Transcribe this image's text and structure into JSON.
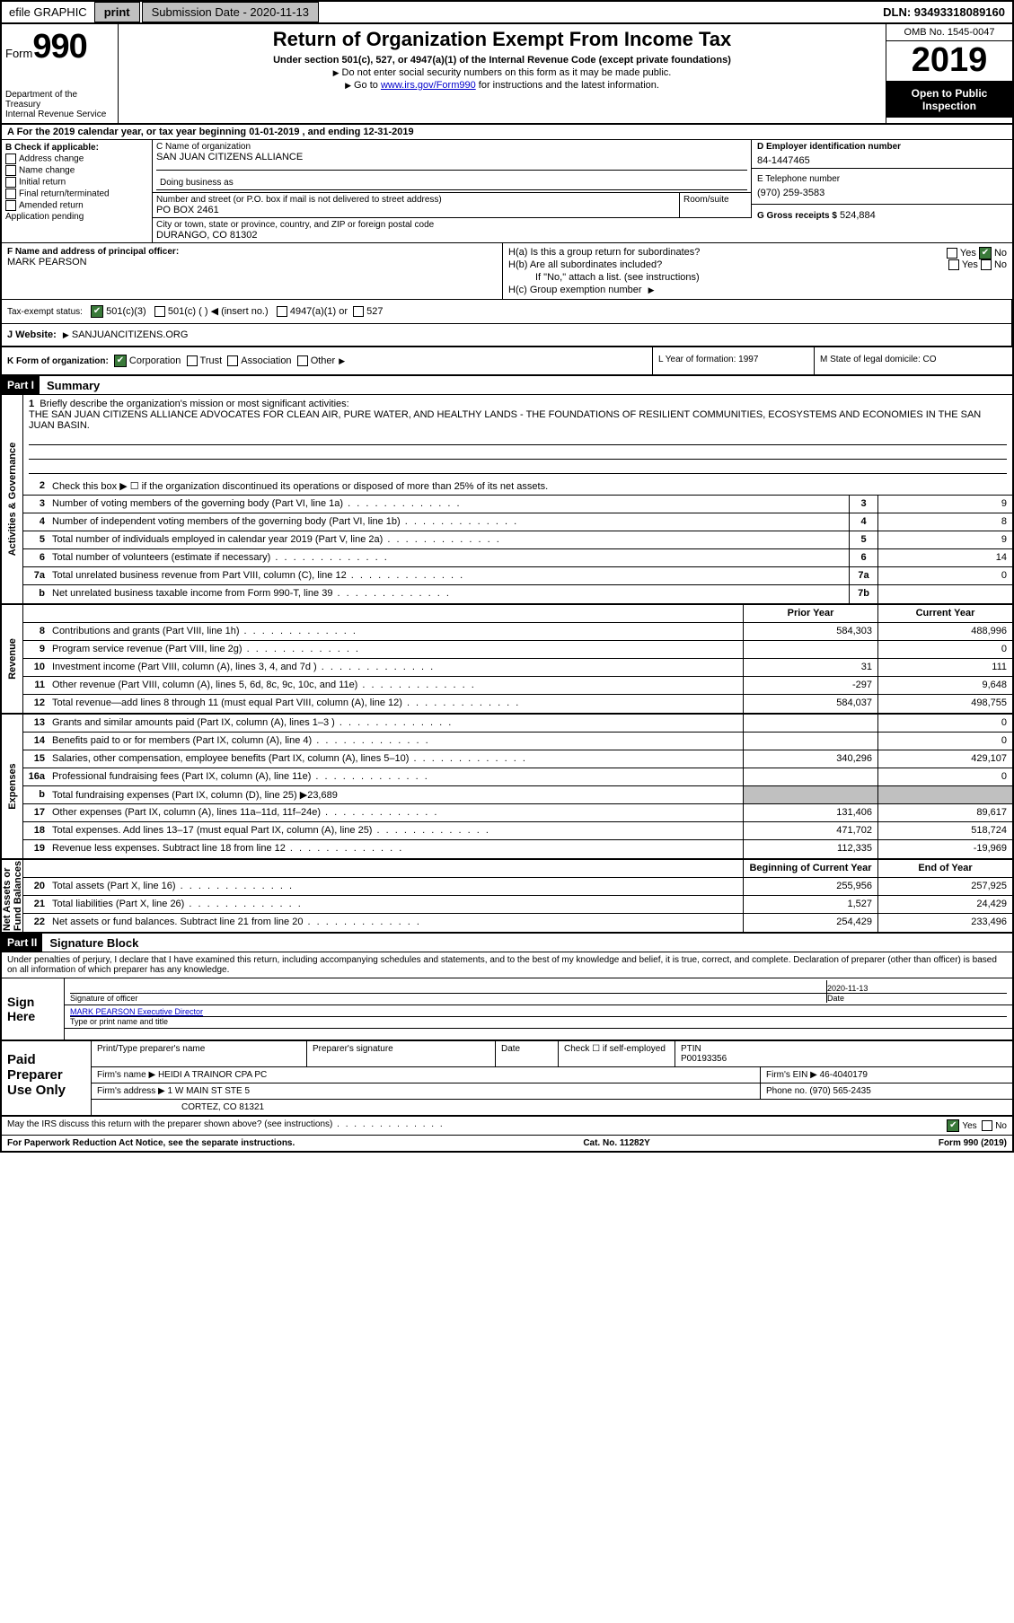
{
  "topbar": {
    "efile": "efile GRAPHIC",
    "print": "print",
    "subdate_label": "Submission Date - 2020-11-13",
    "dln": "DLN: 93493318089160"
  },
  "header": {
    "form_word": "Form",
    "form_num": "990",
    "dept": "Department of the Treasury\nInternal Revenue Service",
    "title": "Return of Organization Exempt From Income Tax",
    "subtitle": "Under section 501(c), 527, or 4947(a)(1) of the Internal Revenue Code (except private foundations)",
    "note1": "Do not enter social security numbers on this form as it may be made public.",
    "note2_pre": "Go to ",
    "note2_link": "www.irs.gov/Form990",
    "note2_post": " for instructions and the latest information.",
    "omb": "OMB No. 1545-0047",
    "year": "2019",
    "open": "Open to Public Inspection"
  },
  "rowA": "A For the 2019 calendar year, or tax year beginning 01-01-2019    , and ending 12-31-2019",
  "colB": {
    "hdr": "B Check if applicable:",
    "items": [
      "Address change",
      "Name change",
      "Initial return",
      "Final return/terminated",
      "Amended return",
      "Application pending"
    ]
  },
  "nameC": {
    "label": "C Name of organization",
    "value": "SAN JUAN CITIZENS ALLIANCE",
    "dba": "Doing business as",
    "addr_label": "Number and street (or P.O. box if mail is not delivered to street address)",
    "addr": "PO BOX 2461",
    "room": "Room/suite",
    "city_label": "City or town, state or province, country, and ZIP or foreign postal code",
    "city": "DURANGO, CO  81302"
  },
  "boxD": {
    "label": "D Employer identification number",
    "value": "84-1447465"
  },
  "boxE": {
    "label": "E Telephone number",
    "value": "(970) 259-3583"
  },
  "boxG": {
    "label": "G Gross receipts $",
    "value": "524,884"
  },
  "boxF": {
    "label": "F  Name and address of principal officer:",
    "name": "MARK PEARSON"
  },
  "boxH": {
    "ha": "H(a)  Is this a group return for subordinates?",
    "hb": "H(b)  Are all subordinates included?",
    "hb_note": "If \"No,\" attach a list. (see instructions)",
    "hc": "H(c)  Group exemption number",
    "yes": "Yes",
    "no": "No"
  },
  "taxI": {
    "label": "Tax-exempt status:",
    "opts": [
      "501(c)(3)",
      "501(c) (  )  ◀ (insert no.)",
      "4947(a)(1) or",
      "527"
    ]
  },
  "webJ": {
    "label": "J   Website:",
    "value": "SANJUANCITIZENS.ORG"
  },
  "rowK": {
    "label": "K Form of organization:",
    "opts": [
      "Corporation",
      "Trust",
      "Association",
      "Other"
    ],
    "l": "L Year of formation: 1997",
    "m": "M State of legal domicile: CO"
  },
  "part1": {
    "hdr": "Part I",
    "title": "Summary",
    "q1": "Briefly describe the organization's mission or most significant activities:",
    "mission": "THE SAN JUAN CITIZENS ALLIANCE ADVOCATES FOR CLEAN AIR, PURE WATER, AND HEALTHY LANDS - THE FOUNDATIONS OF RESILIENT COMMUNITIES, ECOSYSTEMS AND ECONOMIES IN THE SAN JUAN BASIN.",
    "q2": "Check this box ▶ ☐  if the organization discontinued its operations or disposed of more than 25% of its net assets.",
    "lines": [
      {
        "n": "3",
        "d": "Number of voting members of the governing body (Part VI, line 1a)",
        "box": "3",
        "v": "9"
      },
      {
        "n": "4",
        "d": "Number of independent voting members of the governing body (Part VI, line 1b)",
        "box": "4",
        "v": "8"
      },
      {
        "n": "5",
        "d": "Total number of individuals employed in calendar year 2019 (Part V, line 2a)",
        "box": "5",
        "v": "9"
      },
      {
        "n": "6",
        "d": "Total number of volunteers (estimate if necessary)",
        "box": "6",
        "v": "14"
      },
      {
        "n": "7a",
        "d": "Total unrelated business revenue from Part VIII, column (C), line 12",
        "box": "7a",
        "v": "0"
      },
      {
        "n": "b",
        "d": "Net unrelated business taxable income from Form 990-T, line 39",
        "box": "7b",
        "v": ""
      }
    ]
  },
  "revenue": {
    "label": "Revenue",
    "hdr_prior": "Prior Year",
    "hdr_curr": "Current Year",
    "lines": [
      {
        "n": "8",
        "d": "Contributions and grants (Part VIII, line 1h)",
        "p": "584,303",
        "c": "488,996"
      },
      {
        "n": "9",
        "d": "Program service revenue (Part VIII, line 2g)",
        "p": "",
        "c": "0"
      },
      {
        "n": "10",
        "d": "Investment income (Part VIII, column (A), lines 3, 4, and 7d )",
        "p": "31",
        "c": "111"
      },
      {
        "n": "11",
        "d": "Other revenue (Part VIII, column (A), lines 5, 6d, 8c, 9c, 10c, and 11e)",
        "p": "-297",
        "c": "9,648"
      },
      {
        "n": "12",
        "d": "Total revenue—add lines 8 through 11 (must equal Part VIII, column (A), line 12)",
        "p": "584,037",
        "c": "498,755"
      }
    ]
  },
  "expenses": {
    "label": "Expenses",
    "lines": [
      {
        "n": "13",
        "d": "Grants and similar amounts paid (Part IX, column (A), lines 1–3 )",
        "p": "",
        "c": "0"
      },
      {
        "n": "14",
        "d": "Benefits paid to or for members (Part IX, column (A), line 4)",
        "p": "",
        "c": "0"
      },
      {
        "n": "15",
        "d": "Salaries, other compensation, employee benefits (Part IX, column (A), lines 5–10)",
        "p": "340,296",
        "c": "429,107"
      },
      {
        "n": "16a",
        "d": "Professional fundraising fees (Part IX, column (A), line 11e)",
        "p": "",
        "c": "0"
      },
      {
        "n": "b",
        "d": "Total fundraising expenses (Part IX, column (D), line 25) ▶23,689",
        "grey": true
      },
      {
        "n": "17",
        "d": "Other expenses (Part IX, column (A), lines 11a–11d, 11f–24e)",
        "p": "131,406",
        "c": "89,617"
      },
      {
        "n": "18",
        "d": "Total expenses. Add lines 13–17 (must equal Part IX, column (A), line 25)",
        "p": "471,702",
        "c": "518,724"
      },
      {
        "n": "19",
        "d": "Revenue less expenses. Subtract line 18 from line 12",
        "p": "112,335",
        "c": "-19,969"
      }
    ]
  },
  "netassets": {
    "label": "Net Assets or Fund Balances",
    "hdr_beg": "Beginning of Current Year",
    "hdr_end": "End of Year",
    "lines": [
      {
        "n": "20",
        "d": "Total assets (Part X, line 16)",
        "p": "255,956",
        "c": "257,925"
      },
      {
        "n": "21",
        "d": "Total liabilities (Part X, line 26)",
        "p": "1,527",
        "c": "24,429"
      },
      {
        "n": "22",
        "d": "Net assets or fund balances. Subtract line 21 from line 20",
        "p": "254,429",
        "c": "233,496"
      }
    ]
  },
  "part2": {
    "hdr": "Part II",
    "title": "Signature Block",
    "decl": "Under penalties of perjury, I declare that I have examined this return, including accompanying schedules and statements, and to the best of my knowledge and belief, it is true, correct, and complete. Declaration of preparer (other than officer) is based on all information of which preparer has any knowledge."
  },
  "sign": {
    "label": "Sign Here",
    "sig_label": "Signature of officer",
    "date_label": "Date",
    "date": "2020-11-13",
    "name": "MARK PEARSON  Executive Director",
    "type_label": "Type or print name and title"
  },
  "paid": {
    "label": "Paid Preparer Use Only",
    "print_label": "Print/Type preparer's name",
    "sig_label": "Preparer's signature",
    "date_label": "Date",
    "check_label": "Check ☐ if self-employed",
    "ptin_label": "PTIN",
    "ptin": "P00193356",
    "firm_label": "Firm's name  ▶",
    "firm": "HEIDI A TRAINOR CPA PC",
    "ein_label": "Firm's EIN ▶",
    "ein": "46-4040179",
    "addr_label": "Firm's address ▶",
    "addr1": "1 W MAIN ST STE 5",
    "addr2": "CORTEZ, CO  81321",
    "phone_label": "Phone no.",
    "phone": "(970) 565-2435"
  },
  "footer": {
    "q": "May the IRS discuss this return with the preparer shown above? (see instructions)",
    "yes": "Yes",
    "no": "No",
    "pra": "For Paperwork Reduction Act Notice, see the separate instructions.",
    "cat": "Cat. No. 11282Y",
    "form": "Form 990 (2019)"
  }
}
